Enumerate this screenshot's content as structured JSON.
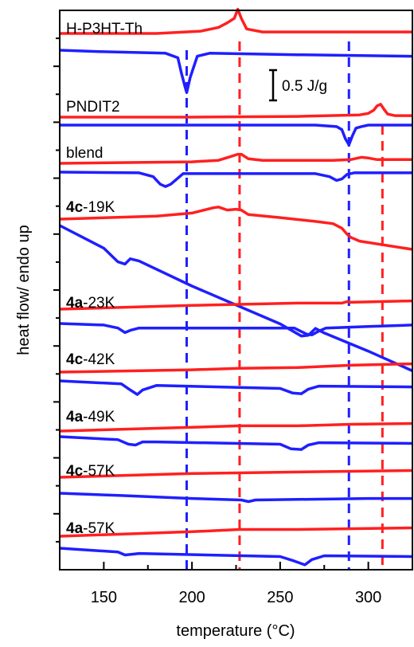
{
  "chart_data": {
    "type": "line",
    "xlabel": "temperature (°C)",
    "ylabel": "heat flow/ endo up",
    "xlim": [
      125,
      325
    ],
    "x_ticks": [
      150,
      200,
      250,
      300
    ],
    "scale_bar_label": "0.5 J/g",
    "colors": {
      "heating": "#ff2020",
      "cooling": "#1f1fff",
      "axis": "#000000"
    },
    "reference_lines": [
      {
        "x": 197,
        "color": "#1f1fff"
      },
      {
        "x": 227,
        "color": "#ff2020"
      },
      {
        "x": 289,
        "color": "#1f1fff"
      },
      {
        "x": 308,
        "color": "#ff2020"
      }
    ],
    "samples": [
      {
        "label_bold": "",
        "label": "H-P3HT-Th",
        "heating": {
          "x": [
            125,
            180,
            205,
            215,
            220,
            224,
            226,
            228,
            231,
            240,
            300,
            325
          ],
          "y": [
            0,
            0,
            0.15,
            0.4,
            0.7,
            1.0,
            1.6,
            1.0,
            0.3,
            0.1,
            0.1,
            0.1
          ]
        },
        "cooling": {
          "x": [
            125,
            150,
            185,
            192,
            194,
            196,
            197,
            199,
            203,
            210,
            260,
            325
          ],
          "y": [
            0,
            -0.1,
            -0.2,
            -0.5,
            -1.5,
            -2.4,
            -2.8,
            -1.8,
            -0.4,
            -0.2,
            -0.3,
            -0.4
          ]
        }
      },
      {
        "label_bold": "",
        "label": "PNDIT2",
        "heating": {
          "x": [
            125,
            200,
            260,
            295,
            300,
            303,
            305,
            307,
            309,
            311,
            315,
            325
          ],
          "y": [
            0,
            0,
            0.05,
            0.15,
            0.25,
            0.45,
            0.75,
            0.85,
            0.5,
            0.2,
            0.1,
            0.1
          ]
        },
        "cooling": {
          "x": [
            125,
            200,
            270,
            282,
            285,
            287,
            289,
            291,
            293,
            296,
            300,
            325
          ],
          "y": [
            0,
            0,
            0,
            -0.1,
            -0.3,
            -0.9,
            -1.3,
            -0.7,
            -0.2,
            -0.1,
            0,
            0
          ]
        }
      },
      {
        "label_bold": "",
        "label": "blend",
        "heating": {
          "x": [
            125,
            200,
            215,
            222,
            226,
            228,
            232,
            240,
            280,
            290,
            296,
            300,
            305,
            325
          ],
          "y": [
            0,
            0.1,
            0.2,
            0.45,
            0.6,
            0.6,
            0.3,
            0.2,
            0.2,
            0.25,
            0.4,
            0.35,
            0.25,
            0.25
          ]
        },
        "cooling": {
          "x": [
            125,
            170,
            178,
            182,
            185,
            188,
            195,
            270,
            278,
            282,
            285,
            288,
            292,
            325
          ],
          "y": [
            0,
            -0.05,
            -0.3,
            -0.8,
            -0.95,
            -0.8,
            -0.1,
            -0.1,
            -0.3,
            -0.55,
            -0.45,
            -0.15,
            -0.05,
            -0.05
          ]
        }
      },
      {
        "label_bold": "4c",
        "label": "-19K",
        "heating": {
          "x": [
            125,
            180,
            200,
            212,
            215,
            220,
            225,
            228,
            232,
            250,
            270,
            280,
            285,
            288,
            290,
            295,
            325
          ],
          "y": [
            0,
            0.2,
            0.4,
            0.75,
            0.8,
            0.6,
            0.65,
            0.6,
            0.3,
            0.1,
            -0.15,
            -0.3,
            -0.6,
            -1.0,
            -1.2,
            -1.45,
            -2.0
          ]
        },
        "cooling": {
          "x": [
            125,
            150,
            158,
            162,
            165,
            170,
            200,
            250,
            262,
            266,
            270,
            275,
            300,
            325
          ],
          "y": [
            0,
            -1.5,
            -2.4,
            -2.55,
            -2.2,
            -2.35,
            -4.0,
            -6.5,
            -7.3,
            -7.25,
            -6.8,
            -7.1,
            -8.3,
            -9.6
          ]
        }
      },
      {
        "label_bold": "4a",
        "label": "-23K",
        "heating": {
          "x": [
            125,
            200,
            260,
            285,
            288,
            290,
            325
          ],
          "y": [
            0,
            0.25,
            0.4,
            0.4,
            0.5,
            0.45,
            0.55
          ]
        },
        "cooling": {
          "x": [
            125,
            150,
            158,
            162,
            165,
            170,
            200,
            258,
            265,
            268,
            272,
            276,
            300,
            325
          ],
          "y": [
            0,
            -0.1,
            -0.3,
            -0.6,
            -0.45,
            -0.3,
            -0.3,
            -0.3,
            -0.7,
            -0.75,
            -0.5,
            -0.3,
            -0.2,
            -0.1
          ]
        }
      },
      {
        "label_bold": "4c",
        "label": "-42K",
        "heating": {
          "x": [
            125,
            200,
            227,
            260,
            290,
            325
          ],
          "y": [
            0,
            0.15,
            0.25,
            0.3,
            0.45,
            0.55
          ]
        },
        "cooling": {
          "x": [
            125,
            160,
            165,
            169,
            172,
            180,
            250,
            257,
            262,
            266,
            272,
            325
          ],
          "y": [
            0,
            -0.2,
            -0.6,
            -0.9,
            -0.6,
            -0.3,
            -0.5,
            -0.8,
            -0.85,
            -0.55,
            -0.35,
            -0.4
          ]
        }
      },
      {
        "label_bold": "4a",
        "label": "-49K",
        "heating": {
          "x": [
            125,
            200,
            227,
            260,
            290,
            325
          ],
          "y": [
            0,
            0.25,
            0.35,
            0.35,
            0.45,
            0.5
          ]
        },
        "cooling": {
          "x": [
            125,
            158,
            164,
            168,
            172,
            180,
            250,
            256,
            262,
            266,
            272,
            325
          ],
          "y": [
            0,
            -0.2,
            -0.5,
            -0.55,
            -0.35,
            -0.35,
            -0.5,
            -0.8,
            -0.85,
            -0.55,
            -0.4,
            -0.45
          ]
        }
      },
      {
        "label_bold": "4c",
        "label": "-57K",
        "heating": {
          "x": [
            125,
            200,
            260,
            325
          ],
          "y": [
            0,
            0.25,
            0.35,
            0.45
          ]
        },
        "cooling": {
          "x": [
            125,
            160,
            200,
            228,
            232,
            236,
            300,
            325
          ],
          "y": [
            0,
            -0.15,
            -0.35,
            -0.45,
            -0.55,
            -0.45,
            -0.35,
            -0.35
          ]
        }
      },
      {
        "label_bold": "4a",
        "label": "-57K",
        "heating": {
          "x": [
            125,
            200,
            227,
            260,
            325
          ],
          "y": [
            0,
            0.3,
            0.45,
            0.45,
            0.55
          ]
        },
        "cooling": {
          "x": [
            125,
            158,
            162,
            166,
            170,
            250,
            258,
            264,
            268,
            275,
            325
          ],
          "y": [
            0,
            -0.25,
            -0.45,
            -0.4,
            -0.35,
            -0.55,
            -0.85,
            -1.1,
            -0.75,
            -0.5,
            -0.55
          ]
        }
      }
    ]
  }
}
